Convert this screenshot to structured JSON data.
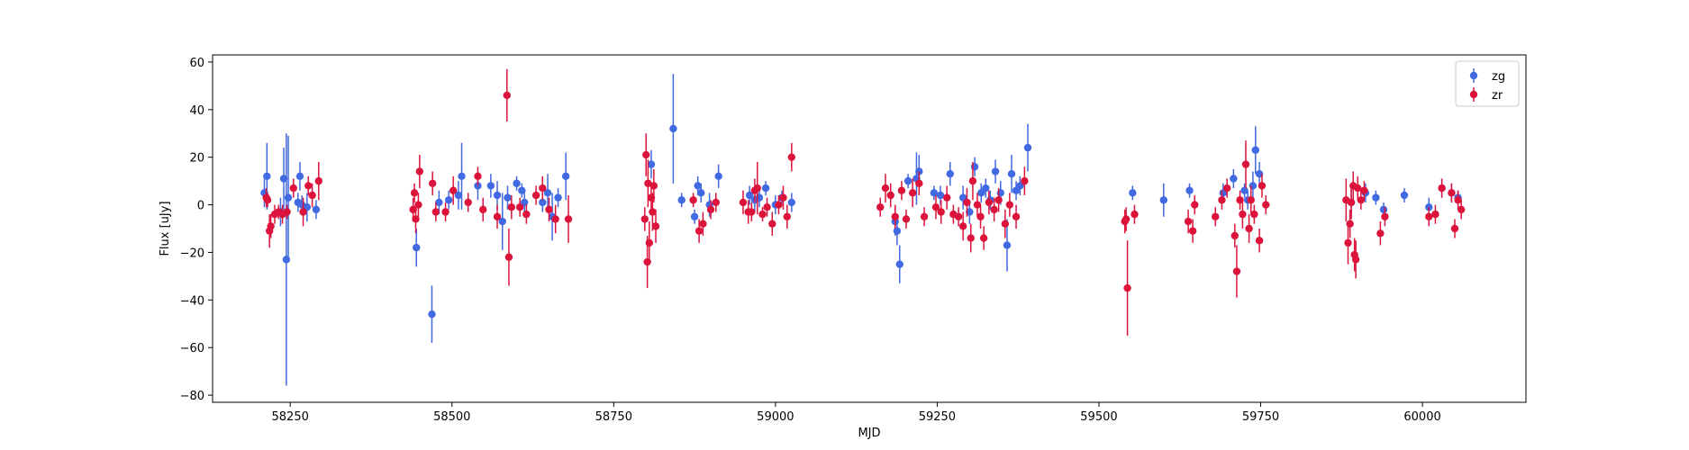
{
  "chart_data": {
    "type": "scatter",
    "title": "",
    "xlabel": "MJD",
    "ylabel": "Flux [uJy]",
    "xlim": [
      58130,
      60160
    ],
    "ylim": [
      -83,
      63
    ],
    "xticks": [
      58250,
      58500,
      58750,
      59000,
      59250,
      59500,
      59750,
      60000
    ],
    "yticks": [
      -80,
      -60,
      -40,
      -20,
      0,
      20,
      40,
      60
    ],
    "grid": false,
    "legend_position": "top-right",
    "series": [
      {
        "name": "zg",
        "color": "#4169E1",
        "points": [
          [
            58210,
            5,
            6
          ],
          [
            58214,
            12,
            14
          ],
          [
            58235,
            -3,
            6
          ],
          [
            58240,
            11,
            13
          ],
          [
            58244,
            -23,
            53
          ],
          [
            58247,
            3,
            26
          ],
          [
            58262,
            1,
            4
          ],
          [
            58265,
            12,
            6
          ],
          [
            58268,
            0,
            4
          ],
          [
            58276,
            -1,
            6
          ],
          [
            58290,
            -2,
            4
          ],
          [
            58445,
            -18,
            8
          ],
          [
            58469,
            -46,
            12
          ],
          [
            58480,
            1,
            5
          ],
          [
            58495,
            2,
            4
          ],
          [
            58510,
            4,
            6
          ],
          [
            58515,
            12,
            14
          ],
          [
            58540,
            8,
            6
          ],
          [
            58560,
            8,
            5
          ],
          [
            58570,
            4,
            6
          ],
          [
            58578,
            -7,
            12
          ],
          [
            58586,
            3,
            5
          ],
          [
            58600,
            9,
            3
          ],
          [
            58608,
            6,
            3
          ],
          [
            58612,
            1,
            4
          ],
          [
            58640,
            1,
            4
          ],
          [
            58648,
            5,
            8
          ],
          [
            58655,
            -5,
            10
          ],
          [
            58664,
            3,
            4
          ],
          [
            58676,
            12,
            10
          ],
          [
            58808,
            17,
            6
          ],
          [
            58842,
            32,
            23
          ],
          [
            58855,
            2,
            3
          ],
          [
            58875,
            -5,
            3
          ],
          [
            58880,
            8,
            4
          ],
          [
            58885,
            5,
            4
          ],
          [
            58898,
            0,
            5
          ],
          [
            58912,
            12,
            5
          ],
          [
            58960,
            4,
            4
          ],
          [
            58968,
            2,
            5
          ],
          [
            58975,
            3,
            4
          ],
          [
            58985,
            7,
            3
          ],
          [
            59000,
            0,
            4
          ],
          [
            59010,
            3,
            3
          ],
          [
            59025,
            1,
            4
          ],
          [
            59185,
            -7,
            6
          ],
          [
            59188,
            -11,
            6
          ],
          [
            59192,
            -25,
            8
          ],
          [
            59205,
            10,
            3
          ],
          [
            59218,
            11,
            11
          ],
          [
            59222,
            14,
            7
          ],
          [
            59245,
            5,
            3
          ],
          [
            59255,
            4,
            4
          ],
          [
            59270,
            13,
            5
          ],
          [
            59290,
            3,
            5
          ],
          [
            59300,
            -3,
            5
          ],
          [
            59308,
            16,
            4
          ],
          [
            59318,
            5,
            4
          ],
          [
            59325,
            7,
            4
          ],
          [
            59332,
            2,
            4
          ],
          [
            59340,
            14,
            5
          ],
          [
            59348,
            5,
            5
          ],
          [
            59358,
            -17,
            11
          ],
          [
            59365,
            13,
            8
          ],
          [
            59372,
            6,
            4
          ],
          [
            59378,
            8,
            4
          ],
          [
            59390,
            24,
            10
          ],
          [
            59552,
            5,
            3
          ],
          [
            59600,
            2,
            7
          ],
          [
            59640,
            6,
            3
          ],
          [
            59692,
            5,
            4
          ],
          [
            59708,
            11,
            4
          ],
          [
            59725,
            6,
            3
          ],
          [
            59730,
            2,
            4
          ],
          [
            59738,
            8,
            6
          ],
          [
            59742,
            23,
            10
          ],
          [
            59748,
            13,
            5
          ],
          [
            59890,
            1,
            6
          ],
          [
            59912,
            5,
            4
          ],
          [
            59928,
            3,
            3
          ],
          [
            59940,
            -2,
            3
          ],
          [
            59972,
            4,
            3
          ],
          [
            60010,
            -1,
            4
          ],
          [
            60030,
            7,
            4
          ],
          [
            60045,
            5,
            4
          ],
          [
            60055,
            3,
            3
          ]
        ]
      },
      {
        "name": "zr",
        "color": "#DC143C",
        "points": [
          [
            58213,
            3,
            4
          ],
          [
            58215,
            2,
            3
          ],
          [
            58218,
            -11,
            7
          ],
          [
            58220,
            -9,
            5
          ],
          [
            58226,
            -4,
            4
          ],
          [
            58232,
            -3,
            3
          ],
          [
            58238,
            -4,
            4
          ],
          [
            58245,
            -3,
            3
          ],
          [
            58255,
            7,
            4
          ],
          [
            58270,
            -3,
            6
          ],
          [
            58278,
            8,
            4
          ],
          [
            58284,
            4,
            5
          ],
          [
            58294,
            10,
            8
          ],
          [
            58440,
            -2,
            5
          ],
          [
            58442,
            5,
            4
          ],
          [
            58444,
            -6,
            6
          ],
          [
            58448,
            0,
            5
          ],
          [
            58450,
            14,
            7
          ],
          [
            58470,
            9,
            5
          ],
          [
            58475,
            -3,
            4
          ],
          [
            58490,
            -3,
            4
          ],
          [
            58502,
            6,
            6
          ],
          [
            58525,
            1,
            4
          ],
          [
            58540,
            12,
            4
          ],
          [
            58548,
            -2,
            5
          ],
          [
            58570,
            -5,
            5
          ],
          [
            58585,
            46,
            11
          ],
          [
            58588,
            -22,
            12
          ],
          [
            58592,
            -1,
            5
          ],
          [
            58605,
            -1,
            4
          ],
          [
            58615,
            -4,
            4
          ],
          [
            58630,
            4,
            4
          ],
          [
            58640,
            7,
            5
          ],
          [
            58650,
            -2,
            5
          ],
          [
            58660,
            -6,
            6
          ],
          [
            58680,
            -6,
            10
          ],
          [
            58798,
            -6,
            5
          ],
          [
            58800,
            21,
            9
          ],
          [
            58802,
            -24,
            11
          ],
          [
            58803,
            9,
            10
          ],
          [
            58805,
            -16,
            9
          ],
          [
            58808,
            3,
            5
          ],
          [
            58810,
            -3,
            8
          ],
          [
            58812,
            8,
            7
          ],
          [
            58815,
            -9,
            7
          ],
          [
            58873,
            2,
            3
          ],
          [
            58882,
            -11,
            5
          ],
          [
            58888,
            -8,
            5
          ],
          [
            58900,
            -2,
            4
          ],
          [
            58908,
            1,
            4
          ],
          [
            58950,
            1,
            5
          ],
          [
            58958,
            -3,
            5
          ],
          [
            58963,
            -3,
            4
          ],
          [
            58968,
            6,
            5
          ],
          [
            58972,
            7,
            11
          ],
          [
            58980,
            -4,
            3
          ],
          [
            58987,
            -1,
            4
          ],
          [
            58995,
            -8,
            5
          ],
          [
            59005,
            0,
            4
          ],
          [
            59012,
            3,
            5
          ],
          [
            59018,
            -5,
            5
          ],
          [
            59025,
            20,
            6
          ],
          [
            59162,
            -1,
            4
          ],
          [
            59170,
            7,
            6
          ],
          [
            59178,
            4,
            5
          ],
          [
            59185,
            -5,
            5
          ],
          [
            59195,
            6,
            4
          ],
          [
            59202,
            -6,
            4
          ],
          [
            59212,
            5,
            6
          ],
          [
            59222,
            9,
            5
          ],
          [
            59230,
            -5,
            4
          ],
          [
            59248,
            -1,
            5
          ],
          [
            59256,
            -3,
            5
          ],
          [
            59265,
            3,
            5
          ],
          [
            59275,
            -4,
            4
          ],
          [
            59283,
            -5,
            4
          ],
          [
            59290,
            -9,
            6
          ],
          [
            59296,
            1,
            6
          ],
          [
            59302,
            -14,
            6
          ],
          [
            59305,
            10,
            8
          ],
          [
            59312,
            0,
            5
          ],
          [
            59317,
            -5,
            5
          ],
          [
            59322,
            -14,
            5
          ],
          [
            59330,
            1,
            5
          ],
          [
            59338,
            -2,
            5
          ],
          [
            59345,
            2,
            5
          ],
          [
            59355,
            -8,
            6
          ],
          [
            59362,
            0,
            5
          ],
          [
            59372,
            -5,
            5
          ],
          [
            59385,
            10,
            6
          ],
          [
            59540,
            -7,
            5
          ],
          [
            59542,
            -6,
            5
          ],
          [
            59544,
            -35,
            20
          ],
          [
            59555,
            -4,
            4
          ],
          [
            59638,
            -7,
            5
          ],
          [
            59645,
            -11,
            5
          ],
          [
            59648,
            0,
            4
          ],
          [
            59680,
            -5,
            4
          ],
          [
            59690,
            2,
            4
          ],
          [
            59698,
            7,
            4
          ],
          [
            59710,
            -13,
            5
          ],
          [
            59713,
            -28,
            11
          ],
          [
            59718,
            2,
            4
          ],
          [
            59722,
            -4,
            6
          ],
          [
            59727,
            17,
            10
          ],
          [
            59732,
            -10,
            6
          ],
          [
            59735,
            2,
            6
          ],
          [
            59740,
            -4,
            4
          ],
          [
            59748,
            -15,
            5
          ],
          [
            59752,
            8,
            5
          ],
          [
            59758,
            0,
            4
          ],
          [
            59882,
            2,
            9
          ],
          [
            59885,
            -16,
            9
          ],
          [
            59888,
            -8,
            6
          ],
          [
            59890,
            1,
            7
          ],
          [
            59893,
            8,
            6
          ],
          [
            59895,
            -21,
            7
          ],
          [
            59897,
            -23,
            8
          ],
          [
            59900,
            7,
            5
          ],
          [
            59905,
            2,
            4
          ],
          [
            59910,
            6,
            4
          ],
          [
            59935,
            -12,
            5
          ],
          [
            59942,
            -5,
            4
          ],
          [
            60010,
            -5,
            4
          ],
          [
            60020,
            -4,
            4
          ],
          [
            60030,
            7,
            4
          ],
          [
            60045,
            5,
            4
          ],
          [
            60050,
            -10,
            4
          ],
          [
            60055,
            2,
            4
          ],
          [
            60060,
            -2,
            4
          ]
        ]
      }
    ]
  }
}
